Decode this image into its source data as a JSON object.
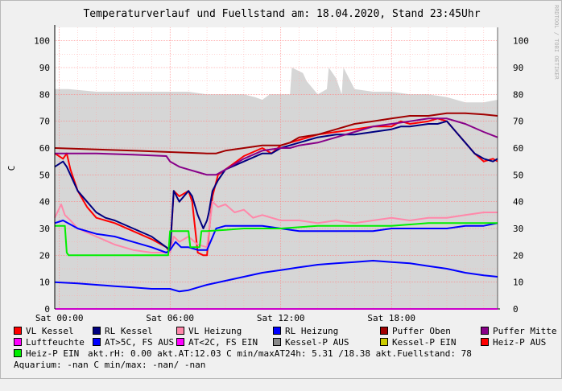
{
  "chart_data": {
    "type": "line",
    "title": "Temperaturverlauf und Fuellstand am: 18.04.2020, Stand 23:45Uhr",
    "ylabel": "C",
    "watermark": "RRDTOOL / TOBI OETIKER",
    "ylim": [
      0,
      105
    ],
    "xlim": [
      -0.25,
      23.75
    ],
    "y_ticks": [
      0,
      10,
      20,
      30,
      40,
      50,
      60,
      70,
      80,
      90,
      100
    ],
    "x_ticks": [
      {
        "value": 0,
        "label": "Sat 00:00"
      },
      {
        "value": 6,
        "label": "Sat 06:00"
      },
      {
        "value": 12,
        "label": "Sat 12:00"
      },
      {
        "value": 18,
        "label": "Sat 18:00"
      }
    ],
    "grid": true,
    "area": {
      "name": "akt.Fuellstand",
      "color": "#d6d6d6",
      "x": [
        -0.25,
        0.2,
        0.5,
        2,
        4,
        6,
        7,
        8,
        9,
        10,
        10.6,
        11,
        11.4,
        12,
        12.5,
        12.6,
        13.2,
        13.4,
        14,
        14.5,
        14.6,
        15,
        15.3,
        15.4,
        16,
        17,
        18,
        19,
        20,
        21,
        22,
        23,
        23.75
      ],
      "y": [
        82,
        82,
        82,
        81,
        81,
        81,
        81,
        80,
        80,
        80,
        79,
        78,
        80,
        80,
        80,
        90,
        88,
        85,
        80,
        82,
        90,
        86,
        80,
        90,
        82,
        81,
        81,
        80,
        80,
        79,
        77,
        77,
        78
      ]
    },
    "series": [
      {
        "name": "VL Kessel",
        "color": "#ff0000",
        "x": [
          -0.25,
          0.2,
          0.4,
          0.6,
          1,
          1.5,
          2,
          2.5,
          3,
          4,
          5,
          5.8,
          6,
          6.2,
          6.5,
          7,
          7.2,
          7.5,
          7.8,
          8,
          8.1,
          8.3,
          8.6,
          9,
          10,
          11,
          11.5,
          12,
          13,
          14,
          15,
          16,
          17,
          18,
          18.5,
          19,
          20,
          20.5,
          21,
          21.5,
          22,
          22.5,
          23,
          23.5,
          23.75
        ],
        "values": [
          58,
          56,
          58,
          52,
          44,
          38,
          34,
          33,
          32,
          29,
          26,
          23,
          21,
          44,
          42,
          44,
          40,
          21,
          20,
          20,
          28,
          42,
          50,
          52,
          57,
          60,
          58,
          61,
          63,
          65,
          66,
          67,
          68,
          68,
          70,
          69,
          70,
          71,
          70,
          66,
          62,
          58,
          55,
          56,
          55
        ]
      },
      {
        "name": "RL Kessel",
        "color": "#000080",
        "x": [
          -0.25,
          0.2,
          0.4,
          0.6,
          1,
          1.5,
          2,
          2.5,
          3,
          4,
          5,
          5.8,
          6,
          6.2,
          6.5,
          7,
          7.2,
          7.5,
          7.8,
          8,
          8.1,
          8.3,
          8.6,
          9,
          10,
          11,
          11.5,
          12,
          13,
          14,
          15,
          16,
          17,
          18,
          18.5,
          19,
          20,
          20.5,
          21,
          21.5,
          22,
          22.5,
          23,
          23.5,
          23.75
        ],
        "values": [
          53,
          55,
          53,
          50,
          44,
          40,
          36,
          34,
          33,
          30,
          27,
          23,
          22,
          44,
          40,
          44,
          42,
          35,
          30,
          33,
          36,
          44,
          48,
          52,
          55,
          58,
          58,
          60,
          62,
          64,
          65,
          65,
          66,
          67,
          68,
          68,
          69,
          69,
          70,
          66,
          62,
          58,
          56,
          55,
          56
        ]
      },
      {
        "name": "VL Heizung",
        "color": "#ff88aa",
        "x": [
          -0.25,
          0.1,
          0.3,
          0.6,
          1,
          2,
          3,
          4,
          5,
          5.8,
          6,
          6.2,
          6.5,
          7,
          7.5,
          8,
          8.3,
          8.6,
          9,
          9.5,
          10,
          10.5,
          11,
          12,
          13,
          14,
          15,
          16,
          17,
          18,
          19,
          20,
          21,
          22,
          23,
          23.75
        ],
        "values": [
          34,
          39,
          35,
          33,
          30,
          27,
          24,
          22,
          21,
          21,
          21,
          27,
          25,
          27,
          24,
          23,
          40,
          38,
          39,
          36,
          37,
          34,
          35,
          33,
          33,
          32,
          33,
          32,
          33,
          34,
          33,
          34,
          34,
          35,
          36,
          36
        ]
      },
      {
        "name": "RL Heizung",
        "color": "#0000ff",
        "x": [
          -0.25,
          0.2,
          1,
          2,
          3,
          4,
          5,
          5.8,
          6,
          6.3,
          6.6,
          7,
          7.5,
          8,
          8.5,
          9,
          10,
          11,
          12,
          13,
          14,
          15,
          16,
          17,
          18,
          19,
          20,
          21,
          22,
          23,
          23.75
        ],
        "values": [
          32,
          33,
          30,
          28,
          27,
          25,
          23,
          21,
          22,
          25,
          23,
          23,
          22,
          22,
          30,
          31,
          31,
          31,
          30,
          29,
          29,
          29,
          29,
          29,
          30,
          30,
          30,
          30,
          31,
          31,
          32
        ]
      },
      {
        "name": "Puffer Oben",
        "color": "#a00000",
        "x": [
          -0.25,
          2,
          4,
          6,
          8,
          8.5,
          9,
          10,
          11,
          12,
          12.5,
          13,
          14,
          15,
          16,
          17,
          18,
          19,
          20,
          21,
          22,
          23,
          23.75
        ],
        "values": [
          60,
          59.5,
          59,
          58.5,
          58,
          58,
          59,
          60,
          61,
          61,
          62,
          64,
          65,
          67,
          69,
          70,
          71,
          72,
          72,
          73,
          73,
          72.5,
          72
        ]
      },
      {
        "name": "Puffer Mitte",
        "color": "#880088",
        "x": [
          -0.25,
          2,
          4,
          5.8,
          6,
          6.5,
          7,
          7.5,
          8,
          8.5,
          9,
          10,
          11,
          12,
          12.5,
          13,
          14,
          15,
          16,
          17,
          18,
          19,
          20,
          21,
          22,
          23,
          23.75
        ],
        "values": [
          58,
          58,
          57.5,
          57,
          55,
          53,
          52,
          51,
          50,
          50,
          52,
          56,
          59,
          60,
          60,
          61,
          62,
          64,
          66,
          68,
          69,
          70,
          71,
          71,
          69,
          66,
          64
        ]
      },
      {
        "name": "Heiz-P EIN",
        "color": "#00ee00",
        "x": [
          -0.25,
          0.3,
          0.4,
          0.5,
          5.8,
          5.9,
          6,
          7,
          7.1,
          7.6,
          7.7,
          8,
          9,
          10,
          12,
          14,
          16,
          18,
          20,
          22,
          23.75
        ],
        "values": [
          31,
          31,
          21,
          20,
          20,
          20,
          29,
          29,
          23,
          23,
          29,
          29,
          29.5,
          30,
          30,
          31,
          31,
          31,
          32,
          32,
          32
        ]
      },
      {
        "name": "AT>5C, FS AUS",
        "color": "#0000ff",
        "x": [
          -0.25,
          1,
          2,
          3,
          4,
          5,
          6,
          6.5,
          7,
          7.5,
          8,
          9,
          10,
          11,
          12,
          13,
          14,
          15,
          16,
          17,
          18,
          19,
          20,
          21,
          22,
          23,
          23.75
        ],
        "values": [
          10,
          9.5,
          9,
          8.5,
          8,
          7.5,
          7.5,
          6.5,
          7,
          8,
          9,
          10.5,
          12,
          13.5,
          14.5,
          15.5,
          16.5,
          17,
          17.5,
          18,
          17.5,
          17,
          16,
          15,
          13.5,
          12.5,
          12
        ]
      }
    ]
  },
  "legend": {
    "row1": [
      {
        "label": "VL Kessel",
        "color": "#ff0000"
      },
      {
        "label": "RL Kessel",
        "color": "#000080"
      },
      {
        "label": "VL Heizung",
        "color": "#ff88aa"
      },
      {
        "label": "RL Heizung",
        "color": "#0000ff"
      },
      {
        "label": "Puffer Oben",
        "color": "#a00000"
      },
      {
        "label": "Puffer Mitte",
        "color": "#880088"
      }
    ],
    "row2": [
      {
        "label": "Luftfeuchte",
        "color": "#ff00ff"
      },
      {
        "label": "AT>5C, FS AUS",
        "color": "#0000ff"
      },
      {
        "label": "AT<2C, FS EIN",
        "color": "#ff00ff"
      },
      {
        "label": "Kessel-P AUS",
        "color": "#888888"
      },
      {
        "label": "Kessel-P EIN",
        "color": "#cccc00"
      },
      {
        "label": "Heiz-P AUS",
        "color": "#ff0000"
      }
    ],
    "row3_item": {
      "label": "Heiz-P EIN",
      "color": "#00ee00"
    },
    "row3_text": "akt.rH: 0.00   akt.AT:12.03 C   min/maxAT24h: 5.31 /18.38   akt.Fuellstand:   78",
    "row4_text": "Aquarium: -nan C  min/max: -nan/ -nan"
  }
}
